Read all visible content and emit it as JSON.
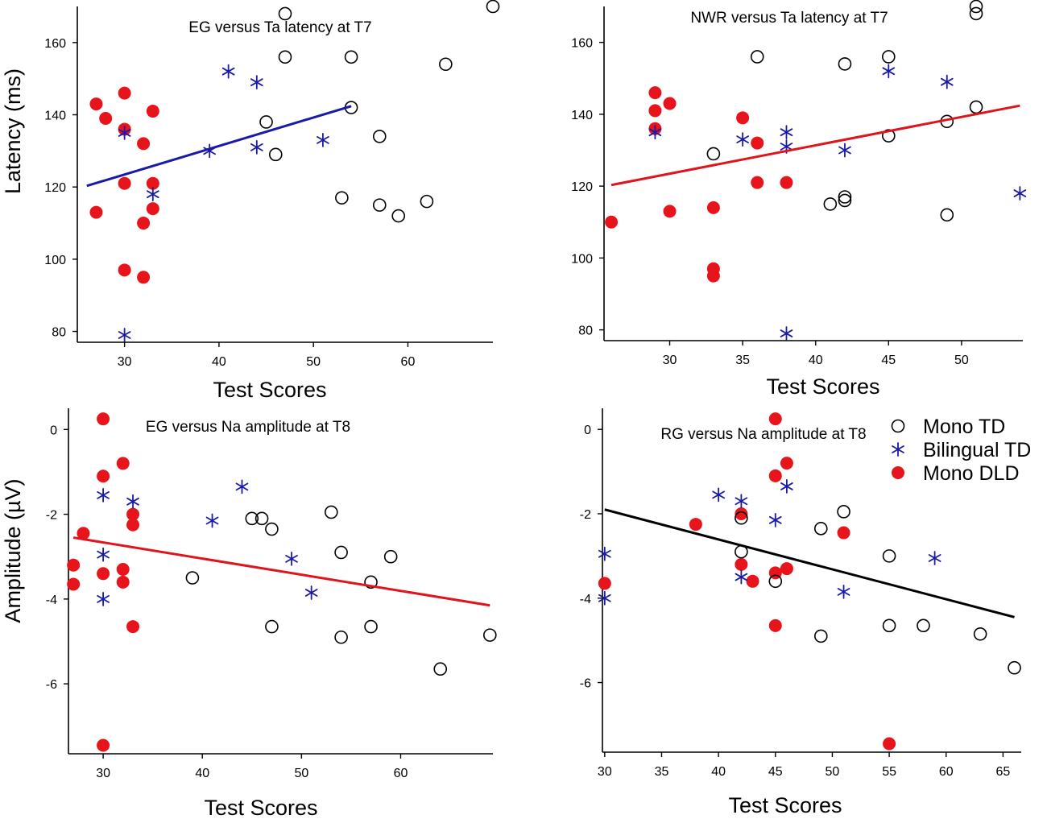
{
  "figure": {
    "legend": [
      {
        "name": "Mono TD",
        "marker": "open-circle-icon"
      },
      {
        "name": "Bilingual TD",
        "marker": "asterisk-icon"
      },
      {
        "name": "Mono DLD",
        "marker": "filled-circle-icon"
      }
    ],
    "colors": {
      "mono_td": "#000000",
      "bilingual_td": "#1a1aa6",
      "mono_dld": "#e8141b",
      "blue_fit": "#1a1aa6",
      "red_fit": "#e0141b",
      "black_fit": "#000000"
    }
  },
  "chart_data": [
    {
      "type": "scatter",
      "title": "EG versus Ta latency at T7",
      "xlabel": "Test Scores",
      "ylabel": "Latency (ms)",
      "xlim": [
        25,
        69
      ],
      "ylim": [
        77,
        170
      ],
      "xticks": [
        30,
        40,
        50,
        60
      ],
      "yticks": [
        80,
        100,
        120,
        140,
        160
      ],
      "series": [
        {
          "name": "Mono TD",
          "points": [
            [
              47,
              168
            ],
            [
              47,
              156
            ],
            [
              54,
              156
            ],
            [
              64,
              154
            ],
            [
              69,
              170
            ],
            [
              45,
              138
            ],
            [
              54,
              142
            ],
            [
              46,
              129
            ],
            [
              57,
              134
            ],
            [
              53,
              117
            ],
            [
              57,
              115
            ],
            [
              59,
              112
            ],
            [
              62,
              116
            ]
          ]
        },
        {
          "name": "Bilingual TD",
          "points": [
            [
              41,
              152
            ],
            [
              44,
              149
            ],
            [
              30,
              135
            ],
            [
              39,
              130
            ],
            [
              44,
              131
            ],
            [
              51,
              133
            ],
            [
              33,
              118
            ],
            [
              30,
              79
            ]
          ]
        },
        {
          "name": "Mono DLD",
          "points": [
            [
              27,
              143
            ],
            [
              28,
              139
            ],
            [
              30,
              146
            ],
            [
              30,
              136
            ],
            [
              33,
              141
            ],
            [
              32,
              132
            ],
            [
              30,
              121
            ],
            [
              33,
              121
            ],
            [
              27,
              113
            ],
            [
              33,
              114
            ],
            [
              32,
              110
            ],
            [
              30,
              97
            ],
            [
              32,
              95
            ]
          ]
        }
      ],
      "fit_line": {
        "color": "blue",
        "x": [
          26,
          54
        ],
        "y": [
          120.3,
          142.4
        ]
      }
    },
    {
      "type": "scatter",
      "title": "NWR versus Ta latency at T7",
      "xlabel": "Test Scores",
      "ylabel": "",
      "xlim": [
        25.5,
        54.2
      ],
      "ylim": [
        77,
        170
      ],
      "xticks": [
        30,
        35,
        40,
        45,
        50
      ],
      "yticks": [
        80,
        100,
        120,
        140,
        160
      ],
      "series": [
        {
          "name": "Mono TD",
          "points": [
            [
              36,
              156
            ],
            [
              42,
              154
            ],
            [
              45,
              156
            ],
            [
              51,
              168
            ],
            [
              51,
              170
            ],
            [
              51,
              142
            ],
            [
              49,
              138
            ],
            [
              45,
              134
            ],
            [
              33,
              129
            ],
            [
              41,
              115
            ],
            [
              42,
              117
            ],
            [
              42,
              116
            ],
            [
              49,
              112
            ]
          ]
        },
        {
          "name": "Bilingual TD",
          "points": [
            [
              29,
              135
            ],
            [
              35,
              133
            ],
            [
              38,
              135
            ],
            [
              38,
              131
            ],
            [
              42,
              130
            ],
            [
              45,
              152
            ],
            [
              49,
              149
            ],
            [
              54,
              118
            ],
            [
              38,
              79
            ]
          ]
        },
        {
          "name": "Mono DLD",
          "points": [
            [
              29,
              146
            ],
            [
              29,
              141
            ],
            [
              30,
              143
            ],
            [
              29,
              136
            ],
            [
              35,
              139
            ],
            [
              36,
              132
            ],
            [
              36,
              121
            ],
            [
              38,
              121
            ],
            [
              30,
              113
            ],
            [
              33,
              114
            ],
            [
              26,
              110
            ],
            [
              33,
              97
            ],
            [
              33,
              95
            ]
          ]
        }
      ],
      "fit_line": {
        "color": "red",
        "x": [
          26,
          54
        ],
        "y": [
          120.3,
          142.4
        ]
      }
    },
    {
      "type": "scatter",
      "title": "EG versus Na amplitude at T8",
      "xlabel": "Test Scores",
      "ylabel": "Amplitude (µV)",
      "xlim": [
        26.5,
        69.3
      ],
      "ylim": [
        -7.65,
        0.5
      ],
      "xticks": [
        30,
        40,
        50,
        60
      ],
      "yticks": [
        0,
        -2,
        -4,
        -6
      ],
      "series": [
        {
          "name": "Mono TD",
          "points": [
            [
              45,
              -2.1
            ],
            [
              46,
              -2.1
            ],
            [
              47,
              -2.35
            ],
            [
              53,
              -1.95
            ],
            [
              39,
              -3.5
            ],
            [
              54,
              -2.9
            ],
            [
              59,
              -3.0
            ],
            [
              57,
              -3.6
            ],
            [
              47,
              -4.65
            ],
            [
              54,
              -4.9
            ],
            [
              57,
              -4.65
            ],
            [
              69,
              -4.85
            ],
            [
              64,
              -5.65
            ]
          ]
        },
        {
          "name": "Bilingual TD",
          "points": [
            [
              30,
              -1.55
            ],
            [
              33,
              -1.7
            ],
            [
              41,
              -2.15
            ],
            [
              44,
              -1.35
            ],
            [
              30,
              -2.95
            ],
            [
              49,
              -3.05
            ],
            [
              30,
              -4.0
            ],
            [
              51,
              -3.85
            ]
          ]
        },
        {
          "name": "Mono DLD",
          "points": [
            [
              30,
              0.25
            ],
            [
              30,
              -1.1
            ],
            [
              32,
              -0.8
            ],
            [
              33,
              -2.0
            ],
            [
              33,
              -2.25
            ],
            [
              28,
              -2.45
            ],
            [
              27,
              -3.2
            ],
            [
              27,
              -3.65
            ],
            [
              30,
              -3.4
            ],
            [
              32,
              -3.3
            ],
            [
              32,
              -3.6
            ],
            [
              33,
              -4.65
            ],
            [
              30,
              -7.45
            ]
          ]
        }
      ],
      "fit_line": {
        "color": "red",
        "x": [
          27,
          69
        ],
        "y": [
          -2.55,
          -4.15
        ]
      }
    },
    {
      "type": "scatter",
      "title": "RG versus Na amplitude at T8",
      "xlabel": "Test Scores",
      "ylabel": "",
      "xlim": [
        29.8,
        66.6
      ],
      "ylim": [
        -7.65,
        0.5
      ],
      "xticks": [
        30,
        35,
        40,
        45,
        50,
        55,
        60,
        65
      ],
      "yticks": [
        0,
        -2,
        -4,
        -6
      ],
      "series": [
        {
          "name": "Mono TD",
          "points": [
            [
              42,
              -2.1
            ],
            [
              49,
              -2.35
            ],
            [
              51,
              -1.95
            ],
            [
              42,
              -2.9
            ],
            [
              55,
              -3.0
            ],
            [
              45,
              -3.6
            ],
            [
              49,
              -4.9
            ],
            [
              55,
              -4.65
            ],
            [
              58,
              -4.65
            ],
            [
              63,
              -4.85
            ],
            [
              66,
              -5.65
            ]
          ]
        },
        {
          "name": "Bilingual TD",
          "points": [
            [
              30,
              -2.95
            ],
            [
              30,
              -4.0
            ],
            [
              40,
              -1.55
            ],
            [
              42,
              -1.7
            ],
            [
              45,
              -2.15
            ],
            [
              46,
              -1.35
            ],
            [
              42,
              -3.5
            ],
            [
              59,
              -3.05
            ],
            [
              51,
              -3.85
            ]
          ]
        },
        {
          "name": "Mono DLD",
          "points": [
            [
              45,
              0.25
            ],
            [
              45,
              -1.1
            ],
            [
              46,
              -0.8
            ],
            [
              42,
              -2.0
            ],
            [
              38,
              -2.25
            ],
            [
              51,
              -2.45
            ],
            [
              30,
              -3.65
            ],
            [
              42,
              -3.2
            ],
            [
              43,
              -3.6
            ],
            [
              45,
              -3.4
            ],
            [
              46,
              -3.3
            ],
            [
              45,
              -4.65
            ],
            [
              55,
              -7.45
            ]
          ]
        }
      ],
      "fit_line": {
        "color": "black",
        "x": [
          30,
          66
        ],
        "y": [
          -1.9,
          -4.45
        ]
      }
    }
  ]
}
